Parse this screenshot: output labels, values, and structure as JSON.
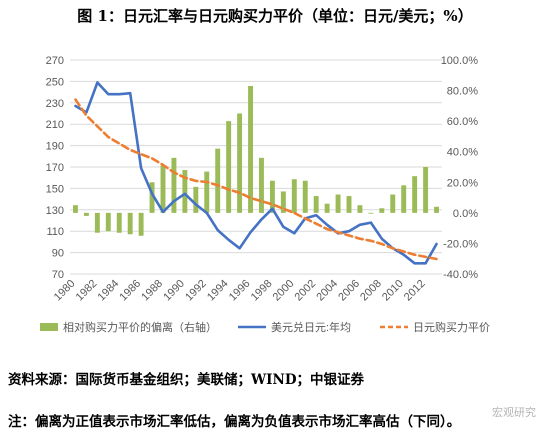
{
  "title": "图 1：日元汇率与日元购买力平价（单位：日元/美元；%）",
  "source": "资料来源：国际货币基金组织；美联储；WIND；中银证券",
  "note": "注：偏离为正值表示市场汇率低估，偏离为负值表示市场汇率高估（下同）。",
  "watermark": "宏观研究",
  "chart_data": {
    "type": "bar+line",
    "x": [
      1980,
      1981,
      1982,
      1983,
      1984,
      1985,
      1986,
      1987,
      1988,
      1989,
      1990,
      1991,
      1992,
      1993,
      1994,
      1995,
      1996,
      1997,
      1998,
      1999,
      2000,
      2001,
      2002,
      2003,
      2004,
      2005,
      2006,
      2007,
      2008,
      2009,
      2010,
      2011,
      2012,
      2013
    ],
    "x_tick_labels": [
      "1980",
      "1982",
      "1984",
      "1986",
      "1988",
      "1990",
      "1992",
      "1994",
      "1996",
      "1998",
      "2000",
      "2002",
      "2004",
      "2006",
      "2008",
      "2010",
      "2012"
    ],
    "left_axis": {
      "ylim": [
        70,
        270
      ],
      "ticks": [
        70,
        90,
        110,
        130,
        150,
        170,
        190,
        210,
        230,
        250,
        270
      ]
    },
    "right_axis": {
      "ylim": [
        -40,
        100
      ],
      "ticks": [
        "-40.0%",
        "-20.0%",
        "0.0%",
        "20.0%",
        "40.0%",
        "60.0%",
        "80.0%",
        "100.0%"
      ],
      "tick_values": [
        -40,
        -20,
        0,
        20,
        40,
        60,
        80,
        100
      ]
    },
    "series": [
      {
        "name": "相对购买力平价的偏离（右轴）",
        "type": "bar",
        "axis": "right",
        "color": "#9bbb59",
        "values": [
          5,
          -2,
          -13,
          -12,
          -13,
          -14,
          -15,
          20,
          31,
          36,
          28,
          17,
          27,
          42,
          60,
          65,
          83,
          36,
          21,
          14,
          22,
          21,
          11,
          6,
          12,
          11,
          5,
          0,
          3,
          12,
          18,
          24,
          30,
          4
        ]
      },
      {
        "name": "美元兑日元:年均",
        "type": "line",
        "axis": "left",
        "color": "#4472c4",
        "values": [
          227,
          221,
          249,
          238,
          238,
          239,
          169,
          145,
          128,
          138,
          145,
          135,
          127,
          111,
          102,
          94,
          109,
          121,
          131,
          114,
          108,
          122,
          125,
          116,
          108,
          110,
          116,
          118,
          103,
          94,
          88,
          80,
          80,
          98
        ]
      },
      {
        "name": "日元购买力平价",
        "type": "line",
        "axis": "left",
        "color": "#ed7d31",
        "dashed": true,
        "values": [
          233,
          218,
          208,
          198,
          192,
          186,
          182,
          178,
          172,
          165,
          160,
          157,
          156,
          153,
          149,
          146,
          141,
          138,
          135,
          131,
          127,
          122,
          117,
          112,
          109,
          106,
          103,
          101,
          98,
          94,
          91,
          88,
          86,
          84
        ]
      }
    ]
  }
}
